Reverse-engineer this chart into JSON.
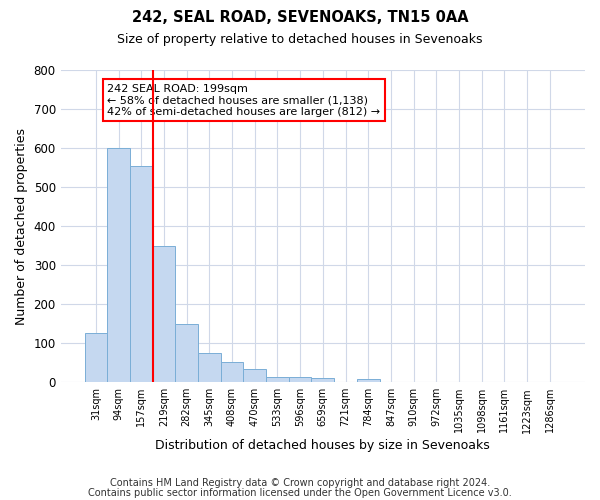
{
  "title1": "242, SEAL ROAD, SEVENOAKS, TN15 0AA",
  "title2": "Size of property relative to detached houses in Sevenoaks",
  "xlabel": "Distribution of detached houses by size in Sevenoaks",
  "ylabel": "Number of detached properties",
  "bar_labels": [
    "31sqm",
    "94sqm",
    "157sqm",
    "219sqm",
    "282sqm",
    "345sqm",
    "408sqm",
    "470sqm",
    "533sqm",
    "596sqm",
    "659sqm",
    "721sqm",
    "784sqm",
    "847sqm",
    "910sqm",
    "972sqm",
    "1035sqm",
    "1098sqm",
    "1161sqm",
    "1223sqm",
    "1286sqm"
  ],
  "bar_values": [
    125,
    600,
    555,
    348,
    148,
    75,
    52,
    33,
    13,
    13,
    10,
    0,
    8,
    0,
    0,
    0,
    0,
    0,
    0,
    0,
    0
  ],
  "bar_color": "#c5d8f0",
  "bar_edge_color": "#7aaed6",
  "vline_color": "red",
  "annotation_title": "242 SEAL ROAD: 199sqm",
  "annotation_line1": "← 58% of detached houses are smaller (1,138)",
  "annotation_line2": "42% of semi-detached houses are larger (812) →",
  "annotation_box_color": "white",
  "annotation_box_edge": "red",
  "ylim": [
    0,
    800
  ],
  "yticks": [
    0,
    100,
    200,
    300,
    400,
    500,
    600,
    700,
    800
  ],
  "footer1": "Contains HM Land Registry data © Crown copyright and database right 2024.",
  "footer2": "Contains public sector information licensed under the Open Government Licence v3.0.",
  "background_color": "#ffffff",
  "grid_color": "#d0d8e8"
}
